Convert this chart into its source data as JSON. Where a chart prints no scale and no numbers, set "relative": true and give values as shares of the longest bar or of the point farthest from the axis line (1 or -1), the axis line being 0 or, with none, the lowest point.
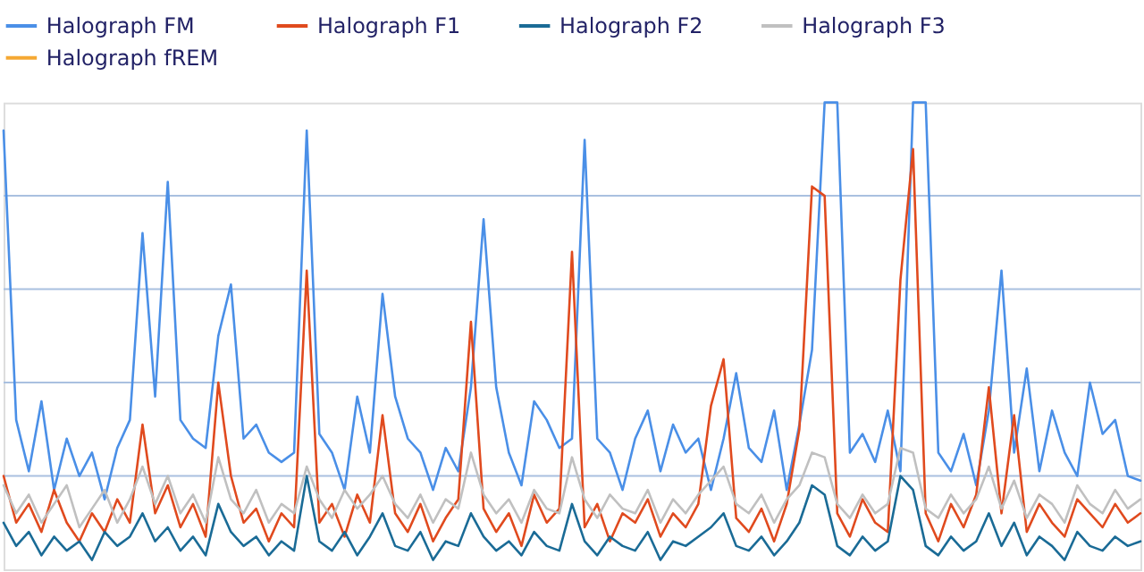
{
  "chart_data": {
    "type": "line",
    "relative": true,
    "ref_lines": [
      {
        "axis": "y",
        "value": 0.2,
        "color": "#a9c0e0"
      },
      {
        "axis": "y",
        "value": 0.4,
        "color": "#a9c0e0"
      },
      {
        "axis": "y",
        "value": 0.6,
        "color": "#a9c0e0"
      },
      {
        "axis": "y",
        "value": 0.8,
        "color": "#a9c0e0"
      }
    ],
    "legend": "top",
    "marker": "none",
    "line_style": "solid",
    "categories": [
      null,
      null,
      null,
      null,
      null,
      null,
      null,
      null,
      null,
      null,
      null,
      null,
      null,
      null,
      null,
      null,
      null,
      null,
      null,
      null,
      null,
      null,
      null,
      null,
      null,
      null,
      null,
      null,
      null,
      null,
      null,
      null,
      null,
      null,
      null,
      null,
      null,
      null,
      null,
      null,
      null,
      null,
      null,
      null,
      null,
      null,
      null,
      null,
      null,
      null,
      null,
      null,
      null,
      null,
      null,
      null,
      null,
      null,
      null,
      null,
      null,
      null,
      null,
      null,
      null,
      null,
      null,
      null,
      null,
      null,
      null,
      null,
      null,
      null,
      null,
      null,
      null,
      null,
      null,
      null,
      null,
      null,
      null,
      null,
      null,
      null,
      null,
      null,
      null,
      null,
      null
    ],
    "series": [
      {
        "name": "Halograph FM",
        "color": "#4a8fe7",
        "values": [
          0.94,
          0.32,
          0.21,
          0.36,
          0.17,
          0.28,
          0.2,
          0.25,
          0.15,
          0.26,
          0.32,
          0.72,
          0.37,
          0.83,
          0.32,
          0.28,
          0.26,
          0.5,
          0.61,
          0.28,
          0.31,
          0.25,
          0.23,
          0.25,
          0.94,
          0.29,
          0.25,
          0.17,
          0.37,
          0.25,
          0.59,
          0.37,
          0.28,
          0.25,
          0.17,
          0.26,
          0.21,
          0.39,
          0.75,
          0.39,
          0.25,
          0.18,
          0.36,
          0.32,
          0.26,
          0.28,
          0.92,
          0.28,
          0.25,
          0.17,
          0.28,
          0.34,
          0.21,
          0.31,
          0.25,
          0.28,
          0.17,
          0.28,
          0.42,
          0.26,
          0.23,
          0.34,
          0.17,
          0.31,
          0.47,
          1,
          1,
          0.25,
          0.29,
          0.23,
          0.34,
          0.21,
          1,
          1,
          0.25,
          0.21,
          0.29,
          0.18,
          0.34,
          0.64,
          0.25,
          0.43,
          0.21,
          0.34,
          0.25,
          0.2,
          0.4,
          0.29,
          0.32,
          0.2,
          0.19
        ]
      },
      {
        "name": "Halograph F1",
        "color": "#e04a1e",
        "values": [
          0.2,
          0.1,
          0.14,
          0.08,
          0.17,
          0.1,
          0.06,
          0.12,
          0.08,
          0.15,
          0.1,
          0.31,
          0.12,
          0.18,
          0.09,
          0.14,
          0.07,
          0.4,
          0.2,
          0.1,
          0.13,
          0.06,
          0.12,
          0.09,
          0.64,
          0.1,
          0.14,
          0.07,
          0.16,
          0.1,
          0.33,
          0.12,
          0.08,
          0.14,
          0.06,
          0.11,
          0.15,
          0.53,
          0.13,
          0.08,
          0.12,
          0.05,
          0.16,
          0.1,
          0.13,
          0.68,
          0.09,
          0.14,
          0.06,
          0.12,
          0.1,
          0.15,
          0.07,
          0.12,
          0.09,
          0.14,
          0.35,
          0.45,
          0.11,
          0.08,
          0.13,
          0.06,
          0.14,
          0.3,
          0.82,
          0.8,
          0.12,
          0.07,
          0.15,
          0.1,
          0.08,
          0.62,
          0.9,
          0.12,
          0.06,
          0.14,
          0.09,
          0.16,
          0.39,
          0.12,
          0.33,
          0.08,
          0.14,
          0.1,
          0.07,
          0.15,
          0.12,
          0.09,
          0.14,
          0.1,
          0.12
        ]
      },
      {
        "name": "Halograph F2",
        "color": "#1a6b96",
        "values": [
          0.1,
          0.05,
          0.08,
          0.03,
          0.07,
          0.04,
          0.06,
          0.02,
          0.08,
          0.05,
          0.07,
          0.12,
          0.06,
          0.09,
          0.04,
          0.07,
          0.03,
          0.14,
          0.08,
          0.05,
          0.07,
          0.03,
          0.06,
          0.04,
          0.2,
          0.06,
          0.04,
          0.08,
          0.03,
          0.07,
          0.12,
          0.05,
          0.04,
          0.08,
          0.02,
          0.06,
          0.05,
          0.12,
          0.07,
          0.04,
          0.06,
          0.03,
          0.08,
          0.05,
          0.04,
          0.14,
          0.06,
          0.03,
          0.07,
          0.05,
          0.04,
          0.08,
          0.02,
          0.06,
          0.05,
          0.07,
          0.09,
          0.12,
          0.05,
          0.04,
          0.07,
          0.03,
          0.06,
          0.1,
          0.18,
          0.16,
          0.05,
          0.03,
          0.07,
          0.04,
          0.06,
          0.2,
          0.17,
          0.05,
          0.03,
          0.07,
          0.04,
          0.06,
          0.12,
          0.05,
          0.1,
          0.03,
          0.07,
          0.05,
          0.02,
          0.08,
          0.05,
          0.04,
          0.07,
          0.05,
          0.06
        ]
      },
      {
        "name": "Halograph F3",
        "color": "#c0c0c0",
        "values": [
          0.18,
          0.12,
          0.16,
          0.1,
          0.14,
          0.18,
          0.09,
          0.13,
          0.17,
          0.1,
          0.15,
          0.22,
          0.14,
          0.2,
          0.12,
          0.16,
          0.1,
          0.24,
          0.15,
          0.12,
          0.17,
          0.1,
          0.14,
          0.12,
          0.22,
          0.15,
          0.11,
          0.17,
          0.13,
          0.16,
          0.2,
          0.14,
          0.11,
          0.16,
          0.1,
          0.15,
          0.13,
          0.25,
          0.16,
          0.12,
          0.15,
          0.1,
          0.17,
          0.13,
          0.12,
          0.24,
          0.15,
          0.11,
          0.16,
          0.13,
          0.12,
          0.17,
          0.1,
          0.15,
          0.12,
          0.16,
          0.19,
          0.22,
          0.14,
          0.12,
          0.16,
          0.1,
          0.15,
          0.18,
          0.25,
          0.24,
          0.14,
          0.11,
          0.16,
          0.12,
          0.14,
          0.26,
          0.25,
          0.13,
          0.11,
          0.16,
          0.12,
          0.15,
          0.22,
          0.13,
          0.19,
          0.11,
          0.16,
          0.14,
          0.1,
          0.18,
          0.14,
          0.12,
          0.17,
          0.13,
          0.15
        ]
      },
      {
        "name": "Halograph fREM",
        "color": "#f5a833",
        "values": [
          null,
          null,
          null,
          null,
          null,
          null,
          null,
          null,
          null,
          null,
          null,
          null,
          null,
          null,
          null,
          null,
          null,
          null,
          null,
          null,
          null,
          null,
          null,
          null,
          null,
          null,
          null,
          null,
          null,
          null,
          null,
          null,
          null,
          null,
          null,
          null,
          null,
          null,
          null,
          null,
          null,
          null,
          null,
          null,
          null,
          null,
          null,
          null,
          null,
          null,
          null,
          null,
          null,
          null,
          null,
          null,
          null,
          null,
          null,
          null,
          null,
          null,
          null,
          null,
          null,
          null,
          null,
          null,
          null,
          null,
          null,
          null,
          null,
          null,
          null,
          null,
          null,
          null,
          null,
          null,
          null,
          null,
          null,
          null,
          null,
          null,
          null,
          null,
          null,
          null,
          null
        ]
      }
    ]
  }
}
